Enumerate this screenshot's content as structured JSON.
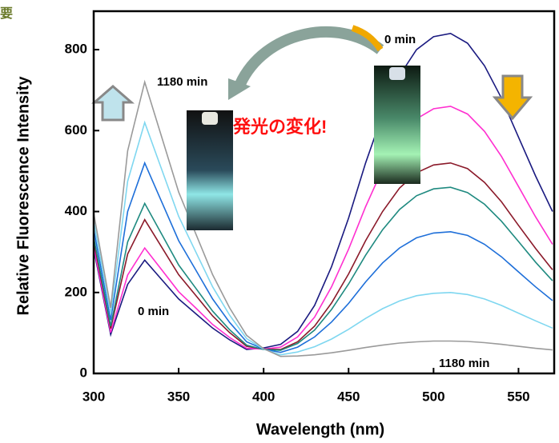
{
  "chart_data": {
    "type": "line",
    "x_label": "Wavelength (nm)",
    "y_label": "Relative Fluorescence Intensity",
    "xlim": [
      300,
      571
    ],
    "ylim": [
      0,
      895
    ],
    "xticks": [
      300,
      350,
      400,
      450,
      500,
      550
    ],
    "yticks": [
      0,
      200,
      400,
      600,
      800
    ],
    "grid": false,
    "x": [
      300,
      310,
      320,
      330,
      340,
      350,
      360,
      370,
      380,
      390,
      400,
      410,
      420,
      430,
      440,
      450,
      460,
      470,
      480,
      490,
      500,
      510,
      520,
      530,
      540,
      550,
      560,
      570
    ],
    "series": [
      {
        "color": "#1a1a80",
        "values": [
          308,
          96,
          220,
          280,
          232,
          184,
          148,
          112,
          83,
          59,
          63,
          72,
          104,
          168,
          264,
          384,
          520,
          640,
          736,
          800,
          832,
          840,
          816,
          760,
          680,
          584,
          488,
          400
        ]
      },
      {
        "color": "#ff2fd0",
        "values": [
          314,
          101,
          243,
          310,
          256,
          202,
          162,
          121,
          89,
          62,
          60,
          65,
          90,
          139,
          214,
          307,
          412,
          505,
          579,
          629,
          654,
          660,
          641,
          598,
          536,
          462,
          387,
          319
        ]
      },
      {
        "color": "#8b1a2a",
        "values": [
          328,
          111,
          295,
          380,
          312,
          244,
          193,
          142,
          101,
          67,
          60,
          59,
          78,
          117,
          174,
          246,
          328,
          400,
          458,
          496,
          515,
          520,
          506,
          472,
          424,
          366,
          309,
          256
        ]
      },
      {
        "color": "#1f8a80",
        "values": [
          336,
          117,
          325,
          420,
          344,
          268,
          211,
          154,
          108,
          70,
          59,
          57,
          74,
          107,
          158,
          221,
          292,
          355,
          405,
          439,
          456,
          460,
          447,
          418,
          376,
          326,
          275,
          229
        ]
      },
      {
        "color": "#1e6fd9",
        "values": [
          356,
          132,
          400,
          520,
          424,
          328,
          256,
          184,
          126,
          78,
          60,
          52,
          65,
          90,
          127,
          173,
          226,
          273,
          310,
          335,
          347,
          350,
          341,
          319,
          288,
          251,
          214,
          180
        ]
      },
      {
        "color": "#7fd7f0",
        "values": [
          376,
          147,
          475,
          620,
          504,
          388,
          301,
          214,
          144,
          86,
          60,
          46,
          53,
          66,
          85,
          109,
          136,
          160,
          179,
          192,
          198,
          200,
          195,
          184,
          168,
          149,
          130,
          112
        ]
      },
      {
        "color": "#9a9a9a",
        "values": [
          396,
          162,
          550,
          720,
          584,
          448,
          346,
          244,
          162,
          94,
          61,
          42,
          43,
          46,
          51,
          57,
          64,
          70,
          75,
          78,
          80,
          80,
          79,
          76,
          72,
          67,
          62,
          58
        ]
      }
    ],
    "annotations": [
      "0 min",
      "1180 min",
      "0 min",
      "1180 min",
      "発光の変化!",
      "要"
    ]
  }
}
